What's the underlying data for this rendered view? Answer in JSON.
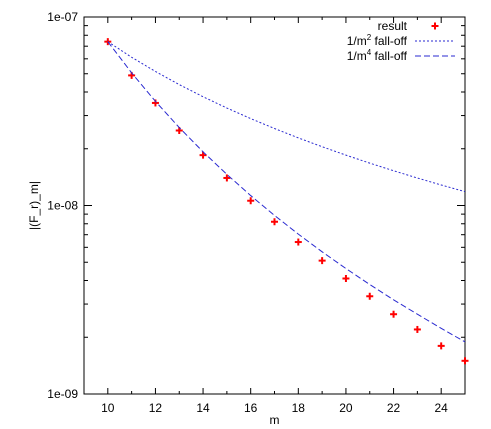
{
  "chart_data": {
    "type": "scatter",
    "xlabel": "m",
    "ylabel": "|(F_r)_m|",
    "xlim": [
      9,
      25
    ],
    "ylim": [
      1e-09,
      1e-07
    ],
    "yscale": "log",
    "grid": false,
    "legend_position": "top-right",
    "x_ticks": [
      10,
      12,
      14,
      16,
      18,
      20,
      22,
      24
    ],
    "x_tick_labels": [
      "10",
      "12",
      "14",
      "16",
      "18",
      "20",
      "22",
      "24"
    ],
    "y_ticks": [
      1e-09,
      1e-08,
      1e-07
    ],
    "y_tick_labels": [
      "1e-09",
      "1e-08",
      "1e-07"
    ],
    "series": [
      {
        "name": "result",
        "kind": "points",
        "marker": "plus",
        "color": "#ff0000",
        "x": [
          10,
          11,
          12,
          13,
          14,
          15,
          16,
          17,
          18,
          19,
          20,
          21,
          22,
          23,
          24,
          25
        ],
        "y": [
          7.4e-08,
          4.9e-08,
          3.5e-08,
          2.5e-08,
          1.85e-08,
          1.4e-08,
          1.06e-08,
          8.2e-09,
          6.4e-09,
          5.1e-09,
          4.1e-09,
          3.3e-09,
          2.65e-09,
          2.2e-09,
          1.8e-09,
          1.5e-09
        ]
      },
      {
        "name": "1/m2 fall-off",
        "label_base": "1/m",
        "label_sup": "2",
        "label_tail": " fall-off",
        "kind": "line",
        "dash": "2,2",
        "color": "#2a2ad0",
        "x": [
          10,
          11,
          12,
          13,
          14,
          15,
          16,
          17,
          18,
          19,
          20,
          21,
          22,
          23,
          24,
          25
        ],
        "y": [
          7.4e-08,
          6.116e-08,
          5.139e-08,
          4.379e-08,
          3.776e-08,
          3.289e-08,
          2.891e-08,
          2.561e-08,
          2.284e-08,
          2.05e-08,
          1.85e-08,
          1.678e-08,
          1.529e-08,
          1.399e-08,
          1.285e-08,
          1.184e-08
        ]
      },
      {
        "name": "1/m4 fall-off",
        "label_base": "1/m",
        "label_sup": "4",
        "label_tail": " fall-off",
        "kind": "line",
        "dash": "6,3",
        "color": "#2a2ad0",
        "x": [
          10,
          11,
          12,
          13,
          14,
          15,
          16,
          17,
          18,
          19,
          20,
          21,
          22,
          23,
          24,
          25
        ],
        "y": [
          7.4e-08,
          5.054e-08,
          3.569e-08,
          2.591e-08,
          1.926e-08,
          1.462e-08,
          1.129e-08,
          8.86e-09,
          7.05e-09,
          5.68e-09,
          4.63e-09,
          3.81e-09,
          3.16e-09,
          2.65e-09,
          2.23e-09,
          1.89e-09
        ]
      }
    ]
  }
}
